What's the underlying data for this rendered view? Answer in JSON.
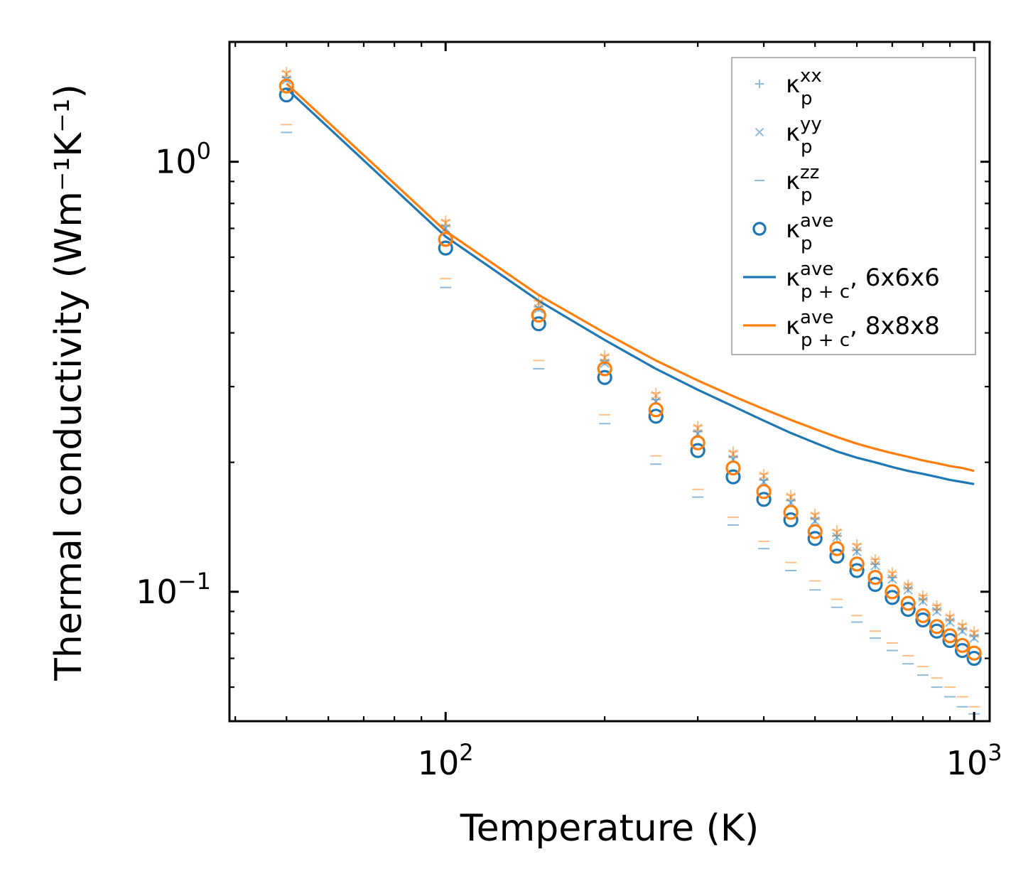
{
  "chart_data": {
    "type": "scatter",
    "xscale": "log",
    "yscale": "log",
    "xlabel": "Temperature (K)",
    "ylabel": "Thermal conductivity (Wm⁻¹K⁻¹)",
    "xlim": [
      39,
      1070
    ],
    "ylim": [
      0.05,
      1.9
    ],
    "xticks": [
      {
        "value": 100,
        "base": "10",
        "exp": "2"
      },
      {
        "value": 1000,
        "base": "10",
        "exp": "3"
      }
    ],
    "yticks": [
      {
        "value": 1,
        "base": "10",
        "exp": "0"
      },
      {
        "value": 0.1,
        "base": "10",
        "exp": "−1"
      }
    ],
    "legend_position": "top-right",
    "colors": {
      "blue": "#1f77b4",
      "orange": "#ff7f0e"
    },
    "x": [
      50,
      100,
      150,
      200,
      250,
      300,
      350,
      400,
      450,
      500,
      550,
      600,
      650,
      700,
      750,
      800,
      850,
      900,
      950,
      1000
    ],
    "series": [
      {
        "name": "kappa_p_xx_6x6x6",
        "marker": "plus",
        "color": "#1f77b4",
        "alpha": 0.5,
        "values": [
          1.57,
          0.71,
          0.46,
          0.345,
          0.28,
          0.236,
          0.206,
          0.182,
          0.163,
          0.148,
          0.135,
          0.125,
          0.116,
          0.108,
          0.102,
          0.096,
          0.091,
          0.086,
          0.082,
          0.079
        ]
      },
      {
        "name": "kappa_p_yy_6x6x6",
        "marker": "x",
        "color": "#1f77b4",
        "alpha": 0.5,
        "values": [
          1.55,
          0.7,
          0.455,
          0.34,
          0.277,
          0.233,
          0.203,
          0.18,
          0.161,
          0.146,
          0.134,
          0.124,
          0.115,
          0.107,
          0.101,
          0.095,
          0.09,
          0.085,
          0.081,
          0.078
        ]
      },
      {
        "name": "kappa_p_zz_6x6x6",
        "marker": "hline",
        "color": "#1f77b4",
        "alpha": 0.5,
        "values": [
          1.17,
          0.51,
          0.33,
          0.246,
          0.198,
          0.166,
          0.143,
          0.126,
          0.112,
          0.101,
          0.092,
          0.085,
          0.078,
          0.073,
          0.068,
          0.064,
          0.06,
          0.057,
          0.054,
          0.052
        ]
      },
      {
        "name": "kappa_p_ave_6x6x6",
        "marker": "circle",
        "color": "#1f77b4",
        "alpha": 1,
        "values": [
          1.43,
          0.63,
          0.42,
          0.315,
          0.256,
          0.213,
          0.185,
          0.164,
          0.147,
          0.133,
          0.121,
          0.112,
          0.104,
          0.097,
          0.091,
          0.086,
          0.081,
          0.077,
          0.073,
          0.07
        ]
      },
      {
        "name": "kappa_p_xx_8x8x8",
        "marker": "plus",
        "color": "#ff7f0e",
        "alpha": 0.5,
        "values": [
          1.62,
          0.73,
          0.475,
          0.355,
          0.29,
          0.243,
          0.212,
          0.188,
          0.168,
          0.152,
          0.139,
          0.129,
          0.119,
          0.111,
          0.104,
          0.098,
          0.093,
          0.088,
          0.084,
          0.081
        ]
      },
      {
        "name": "kappa_p_yy_8x8x8",
        "marker": "x",
        "color": "#ff7f0e",
        "alpha": 0.5,
        "values": [
          1.6,
          0.72,
          0.47,
          0.35,
          0.286,
          0.24,
          0.209,
          0.186,
          0.166,
          0.15,
          0.137,
          0.127,
          0.118,
          0.11,
          0.103,
          0.097,
          0.092,
          0.087,
          0.083,
          0.08
        ]
      },
      {
        "name": "kappa_p_zz_8x8x8",
        "marker": "hline",
        "color": "#ff7f0e",
        "alpha": 0.5,
        "values": [
          1.22,
          0.535,
          0.345,
          0.258,
          0.207,
          0.173,
          0.149,
          0.131,
          0.117,
          0.106,
          0.096,
          0.088,
          0.081,
          0.076,
          0.071,
          0.067,
          0.063,
          0.06,
          0.057,
          0.054
        ]
      },
      {
        "name": "kappa_p_ave_8x8x8",
        "marker": "circle",
        "color": "#ff7f0e",
        "alpha": 1,
        "values": [
          1.5,
          0.66,
          0.44,
          0.33,
          0.265,
          0.222,
          0.194,
          0.171,
          0.153,
          0.138,
          0.126,
          0.116,
          0.108,
          0.1,
          0.094,
          0.088,
          0.083,
          0.079,
          0.075,
          0.072
        ]
      },
      {
        "name": "kappa_pc_ave_6x6x6",
        "marker": "line",
        "color": "#1f77b4",
        "alpha": 1,
        "values": [
          1.48,
          0.67,
          0.475,
          0.385,
          0.33,
          0.295,
          0.27,
          0.25,
          0.234,
          0.222,
          0.212,
          0.205,
          0.2,
          0.195,
          0.191,
          0.188,
          0.185,
          0.182,
          0.18,
          0.178
        ]
      },
      {
        "name": "kappa_pc_ave_8x8x8",
        "marker": "line",
        "color": "#ff7f0e",
        "alpha": 1,
        "values": [
          1.52,
          0.69,
          0.49,
          0.4,
          0.345,
          0.31,
          0.285,
          0.266,
          0.251,
          0.239,
          0.229,
          0.221,
          0.215,
          0.21,
          0.206,
          0.202,
          0.199,
          0.196,
          0.194,
          0.191
        ]
      }
    ],
    "legend": [
      {
        "marker": "plus",
        "color": "#1f77b4",
        "sym": "κ",
        "sub": "p",
        "sup": "xx",
        "rest": ""
      },
      {
        "marker": "x",
        "color": "#1f77b4",
        "sym": "κ",
        "sub": "p",
        "sup": "yy",
        "rest": ""
      },
      {
        "marker": "hline",
        "color": "#1f77b4",
        "sym": "κ",
        "sub": "p",
        "sup": "zz",
        "rest": ""
      },
      {
        "marker": "circle",
        "color": "#1f77b4",
        "sym": "κ",
        "sub": "p",
        "sup": "ave",
        "rest": ""
      },
      {
        "marker": "line",
        "color": "#1f77b4",
        "sym": "κ",
        "sub": "p + c",
        "sup": "ave",
        "rest": ", 6x6x6"
      },
      {
        "marker": "line",
        "color": "#ff7f0e",
        "sym": "κ",
        "sub": "p + c",
        "sup": "ave",
        "rest": ", 8x8x8"
      }
    ]
  }
}
